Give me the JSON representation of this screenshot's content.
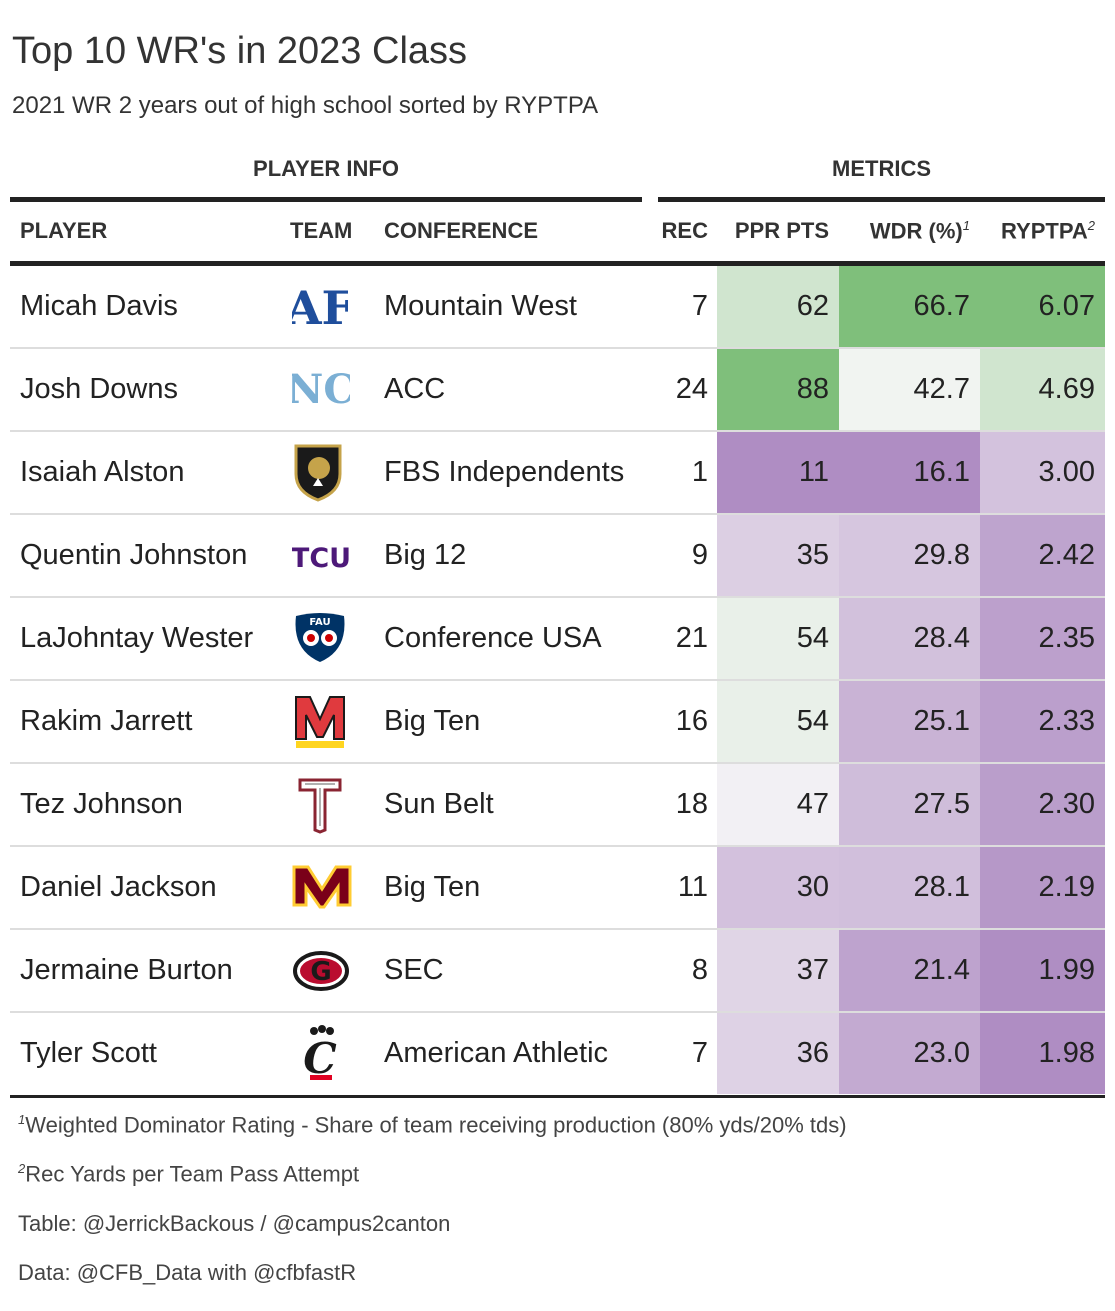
{
  "title": "Top 10 WR's in 2023 Class",
  "subtitle": "2021 WR 2 years out of high school sorted by RYPTPA",
  "spanners": {
    "player_info": "PLAYER INFO",
    "metrics": "METRICS"
  },
  "columns": {
    "player": "PLAYER",
    "team": "TEAM",
    "conference": "CONFERENCE",
    "rec": "REC",
    "ppr": "PPR PTS",
    "wdr": "WDR (%)",
    "wdr_note": "1",
    "ryptpa": "RYPTPA",
    "ryptpa_note": "2"
  },
  "chart_data": {
    "type": "table",
    "color_scale": {
      "low": "#af8dc3",
      "mid": "#f7f7f7",
      "high": "#7fbf7b"
    },
    "rows": [
      {
        "player": "Micah Davis",
        "team_logo": "air-force-logo",
        "conference": "Mountain West",
        "rec": "7",
        "ppr": "62",
        "wdr": "66.7",
        "ryptpa": "6.07"
      },
      {
        "player": "Josh Downs",
        "team_logo": "north-carolina-logo",
        "conference": "ACC",
        "rec": "24",
        "ppr": "88",
        "wdr": "42.7",
        "ryptpa": "4.69"
      },
      {
        "player": "Isaiah Alston",
        "team_logo": "army-logo",
        "conference": "FBS Independents",
        "rec": "1",
        "ppr": "11",
        "wdr": "16.1",
        "ryptpa": "3.00"
      },
      {
        "player": "Quentin Johnston",
        "team_logo": "tcu-logo",
        "conference": "Big 12",
        "rec": "9",
        "ppr": "35",
        "wdr": "29.8",
        "ryptpa": "2.42"
      },
      {
        "player": "LaJohntay Wester",
        "team_logo": "fau-logo",
        "conference": "Conference USA",
        "rec": "21",
        "ppr": "54",
        "wdr": "28.4",
        "ryptpa": "2.35"
      },
      {
        "player": "Rakim Jarrett",
        "team_logo": "maryland-logo",
        "conference": "Big Ten",
        "rec": "16",
        "ppr": "54",
        "wdr": "25.1",
        "ryptpa": "2.33"
      },
      {
        "player": "Tez Johnson",
        "team_logo": "troy-logo",
        "conference": "Sun Belt",
        "rec": "18",
        "ppr": "47",
        "wdr": "27.5",
        "ryptpa": "2.30"
      },
      {
        "player": "Daniel Jackson",
        "team_logo": "minnesota-logo",
        "conference": "Big Ten",
        "rec": "11",
        "ppr": "30",
        "wdr": "28.1",
        "ryptpa": "2.19"
      },
      {
        "player": "Jermaine Burton",
        "team_logo": "georgia-logo",
        "conference": "SEC",
        "rec": "8",
        "ppr": "37",
        "wdr": "21.4",
        "ryptpa": "1.99"
      },
      {
        "player": "Tyler Scott",
        "team_logo": "cincinnati-logo",
        "conference": "American Athletic",
        "rec": "7",
        "ppr": "36",
        "wdr": "23.0",
        "ryptpa": "1.98"
      }
    ]
  },
  "footnotes": {
    "note1_mark": "1",
    "note1": "Weighted Dominator Rating - Share of team receiving production (80% yds/20% tds)",
    "note2_mark": "2",
    "note2": "Rec Yards per Team Pass Attempt",
    "source1": "Table: @JerrickBackous / @campus2canton",
    "source2": "Data: @CFB_Data with @cfbfastR"
  }
}
